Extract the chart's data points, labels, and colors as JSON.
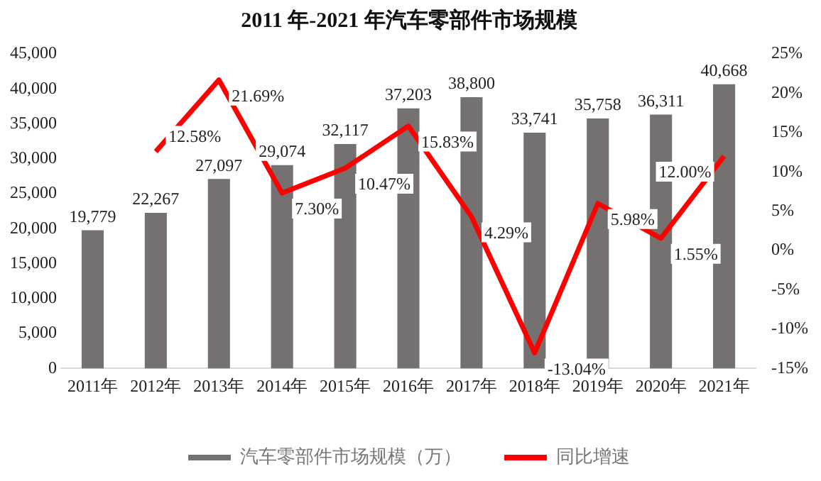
{
  "chart_data": {
    "type": "bar",
    "title": "2011 年-2021 年汽车零部件市场规模",
    "categories": [
      "2011年",
      "2012年",
      "2013年",
      "2014年",
      "2015年",
      "2016年",
      "2017年",
      "2018年",
      "2019年",
      "2020年",
      "2021年"
    ],
    "series": [
      {
        "name": "汽车零部件市场规模（万）",
        "color": "#767171",
        "values": [
          19779,
          22267,
          27097,
          29074,
          32117,
          37203,
          38800,
          33741,
          35758,
          36311,
          40668
        ],
        "value_labels": [
          "19,779",
          "22,267",
          "27,097",
          "29,074",
          "32,117",
          "37,203",
          "38,800",
          "33,741",
          "35,758",
          "36,311",
          "40,668"
        ]
      },
      {
        "name": "同比增速",
        "type": "line",
        "axis": "y2",
        "color": "#ff0000",
        "values": [
          null,
          12.58,
          21.69,
          7.3,
          10.47,
          15.83,
          4.29,
          -13.04,
          5.98,
          1.55,
          12.0
        ],
        "value_labels": [
          null,
          "12.58%",
          "21.69%",
          "7.30%",
          "10.47%",
          "15.83%",
          "4.29%",
          "-13.04%",
          "5.98%",
          "1.55%",
          "12.00%"
        ]
      }
    ],
    "ylim": [
      0,
      45000
    ],
    "yticks": [
      0,
      {
        "value": 5000,
        "label": "5,000"
      },
      {
        "value": 10000,
        "label": "10,000"
      },
      {
        "value": 15000,
        "label": "15,000"
      },
      {
        "value": 20000,
        "label": "20,000"
      },
      {
        "value": 25000,
        "label": "25,000"
      },
      {
        "value": 30000,
        "label": "30,000"
      },
      {
        "value": 35000,
        "label": "35,000"
      },
      {
        "value": 40000,
        "label": "40,000"
      },
      {
        "value": 45000,
        "label": "45,000"
      }
    ],
    "y2lim": [
      -15,
      25
    ],
    "y2ticks": [
      {
        "value": -15,
        "label": "-15%"
      },
      {
        "value": -10,
        "label": "-10%"
      },
      {
        "value": -5,
        "label": "-5%"
      },
      {
        "value": 0,
        "label": "0%"
      },
      {
        "value": 5,
        "label": "5%"
      },
      {
        "value": 10,
        "label": "10%"
      },
      {
        "value": 15,
        "label": "15%"
      },
      {
        "value": 20,
        "label": "20%"
      },
      {
        "value": 25,
        "label": "25%"
      }
    ],
    "grid": false,
    "legend": "bottom",
    "marker": "none"
  }
}
